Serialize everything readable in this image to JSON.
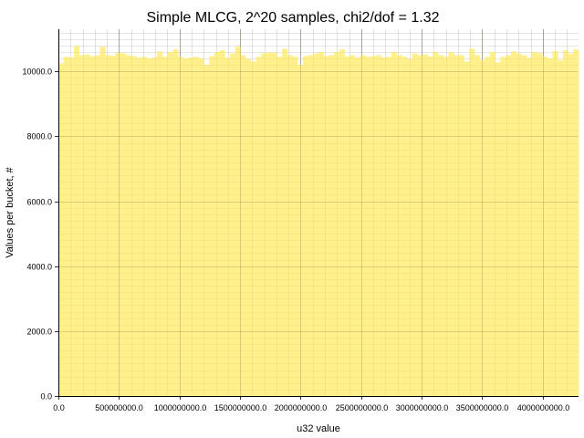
{
  "chart_data": {
    "type": "bar",
    "title": "Simple MLCG, 2^20 samples, chi2/dof = 1.32",
    "xlabel": "u32 value",
    "ylabel": "Values per bucket, #",
    "xlim": [
      0,
      4294967296
    ],
    "ylim": [
      0,
      11300
    ],
    "xticks": [
      0,
      500000000,
      1000000000,
      1500000000,
      2000000000,
      2500000000,
      3000000000,
      3500000000,
      4000000000
    ],
    "xtick_labels": [
      "0.0",
      "500000000.0",
      "1000000000.0",
      "1500000000.0",
      "2000000000.0",
      "2500000000.0",
      "3000000000.0",
      "3500000000.0",
      "4000000000.0"
    ],
    "yticks": [
      0,
      2000,
      4000,
      6000,
      8000,
      10000
    ],
    "ytick_labels": [
      "0.0",
      "2000.0",
      "4000.0",
      "6000.0",
      "8000.0",
      "10000.0"
    ],
    "grid": true,
    "bin_width": 42949672.96,
    "bar_color": "#fff08c",
    "values": [
      10250,
      10450,
      10430,
      10780,
      10500,
      10520,
      10470,
      10500,
      10760,
      10500,
      10480,
      10580,
      10550,
      10500,
      10470,
      10420,
      10450,
      10400,
      10430,
      10620,
      10450,
      10600,
      10680,
      10450,
      10400,
      10430,
      10450,
      10400,
      10200,
      10470,
      10600,
      10650,
      10420,
      10550,
      10760,
      10500,
      10380,
      10300,
      10450,
      10560,
      10580,
      10570,
      10450,
      10700,
      10500,
      10450,
      10200,
      10470,
      10500,
      10550,
      10600,
      10470,
      10500,
      10600,
      10680,
      10460,
      10500,
      10430,
      10500,
      10450,
      10470,
      10500,
      10430,
      10450,
      10600,
      10500,
      10450,
      10380,
      10550,
      10500,
      10520,
      10460,
      10600,
      10500,
      10450,
      10600,
      10500,
      10500,
      10300,
      10700,
      10500,
      10350,
      10450,
      10600,
      10280,
      10450,
      10500,
      10620,
      10550,
      10500,
      10420,
      10600,
      10560,
      10460,
      10400,
      10620,
      10350,
      10650,
      10550,
      10680
    ]
  }
}
